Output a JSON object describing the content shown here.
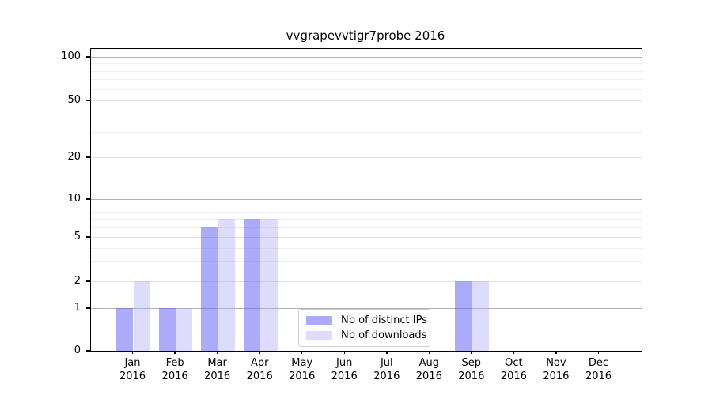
{
  "chart_data": {
    "type": "bar",
    "title": "vvgrapevvtigr7probe 2016",
    "categories": [
      "Jan 2016",
      "Feb 2016",
      "Mar 2016",
      "Apr 2016",
      "May 2016",
      "Jun 2016",
      "Jul 2016",
      "Aug 2016",
      "Sep 2016",
      "Oct 2016",
      "Nov 2016",
      "Dec 2016"
    ],
    "months": [
      "Jan",
      "Feb",
      "Mar",
      "Apr",
      "May",
      "Jun",
      "Jul",
      "Aug",
      "Sep",
      "Oct",
      "Nov",
      "Dec"
    ],
    "year": "2016",
    "series": [
      {
        "name": "Nb of distinct IPs",
        "color": "#6666f4",
        "alpha": 0.55,
        "values": [
          1,
          1,
          6,
          7,
          0,
          0,
          0,
          0,
          2,
          0,
          0,
          0
        ]
      },
      {
        "name": "Nb of downloads",
        "color": "#aaaaf5",
        "alpha": 0.4,
        "values": [
          2,
          1,
          7,
          7,
          0,
          0,
          0,
          0,
          2,
          0,
          0,
          0
        ]
      }
    ],
    "xlabel": "",
    "ylabel": "",
    "yscale": "symlog-like",
    "ylim": [
      0,
      115
    ],
    "y_major_ticks": [
      0,
      1,
      2,
      5,
      10,
      20,
      50,
      100
    ],
    "y_strong_grid_ticks": [
      1,
      10,
      100
    ],
    "y_minor_ticks": [
      3,
      4,
      6,
      7,
      8,
      9,
      30,
      40,
      60,
      70,
      80,
      90
    ],
    "grid": true,
    "legend_position": "lower center",
    "legend": {
      "items": [
        {
          "label": "Nb of distinct IPs"
        },
        {
          "label": "Nb of downloads"
        }
      ]
    }
  }
}
